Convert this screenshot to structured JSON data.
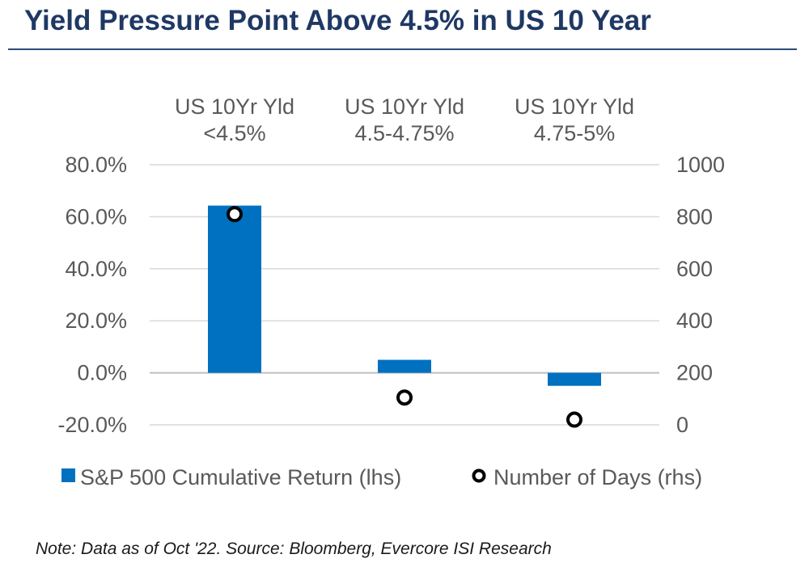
{
  "title": "Yield Pressure Point Above 4.5%  in US 10 Year",
  "note": "Note: Data as of Oct '22.  Source: Bloomberg, Evercore ISI Research",
  "colors": {
    "bar": "#0070c0",
    "title": "#1f3864",
    "text": "#595959",
    "grid": "#d9d9d9"
  },
  "chart_data": {
    "type": "bar",
    "categories": [
      [
        "US 10Yr Yld",
        "<4.5%"
      ],
      [
        "US 10Yr Yld",
        "4.5-4.75%"
      ],
      [
        "US 10Yr Yld",
        "4.75-5%"
      ]
    ],
    "series": [
      {
        "name": "S&P 500 Cumulative Return (lhs)",
        "type": "bar",
        "axis": "left",
        "values": [
          64.3,
          5.0,
          -5.0
        ]
      },
      {
        "name": "Number of Days (rhs)",
        "type": "scatter",
        "axis": "right",
        "values": [
          810,
          105,
          20
        ]
      }
    ],
    "y_left": {
      "min": -20,
      "max": 80,
      "step": 20,
      "ticks": [
        "-20.0%",
        "0.0%",
        "20.0%",
        "40.0%",
        "60.0%",
        "80.0%"
      ]
    },
    "y_right": {
      "min": 0,
      "max": 1000,
      "step": 200,
      "ticks": [
        "0",
        "200",
        "400",
        "600",
        "800",
        "1000"
      ]
    },
    "grid": true,
    "legend": "bottom"
  }
}
